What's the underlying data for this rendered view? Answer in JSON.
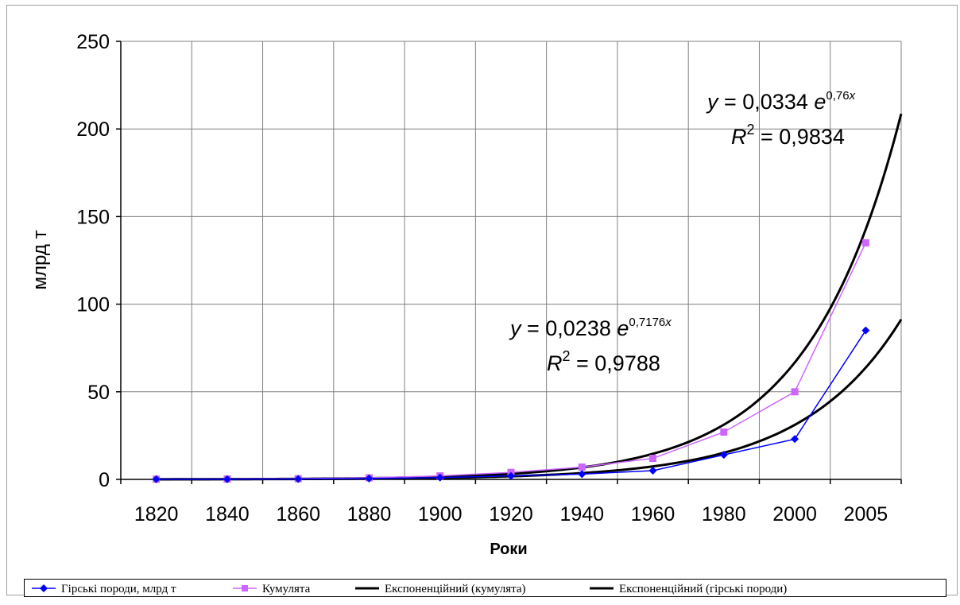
{
  "chart_data": {
    "type": "line",
    "title": "",
    "xlabel": "Роки",
    "ylabel": "млрд т",
    "categories": [
      "1820",
      "1840",
      "1860",
      "1880",
      "1900",
      "1920",
      "1940",
      "1960",
      "1980",
      "2000",
      "2005"
    ],
    "ylim": [
      0,
      250
    ],
    "yticks": [
      0,
      50,
      100,
      150,
      200,
      250
    ],
    "grid": true,
    "legend_position": "bottom",
    "series": [
      {
        "name": "Гірські породи, млрд т",
        "color": "#0000ff",
        "marker": "diamond",
        "values": [
          0.1,
          0.1,
          0.2,
          0.5,
          1,
          2,
          3,
          5,
          14,
          23,
          85
        ]
      },
      {
        "name": "Кумулята",
        "color": "#cc66ff",
        "marker": "square",
        "values": [
          0.1,
          0.2,
          0.4,
          0.9,
          2,
          4,
          7,
          12,
          27,
          50,
          135
        ]
      }
    ],
    "trendlines": [
      {
        "name": "Експоненційний (кумулята)",
        "color": "#000000",
        "a": 0.0334,
        "b": 0.76,
        "equation": {
          "y": "y",
          "eq": " = 0,0334 ",
          "e": "e",
          "exp": "0,76",
          "expvar": "x"
        },
        "r2": {
          "R": "R",
          "sup": "2",
          "val": " = 0,9834"
        }
      },
      {
        "name": "Експоненційний (гірські породи)",
        "color": "#000000",
        "a": 0.0238,
        "b": 0.7176,
        "equation": {
          "y": "y",
          "eq": " = 0,0238 ",
          "e": "e",
          "exp": "0,7176",
          "expvar": "x"
        },
        "r2": {
          "R": "R",
          "sup": "2",
          "val": " = 0,9788"
        }
      }
    ]
  }
}
